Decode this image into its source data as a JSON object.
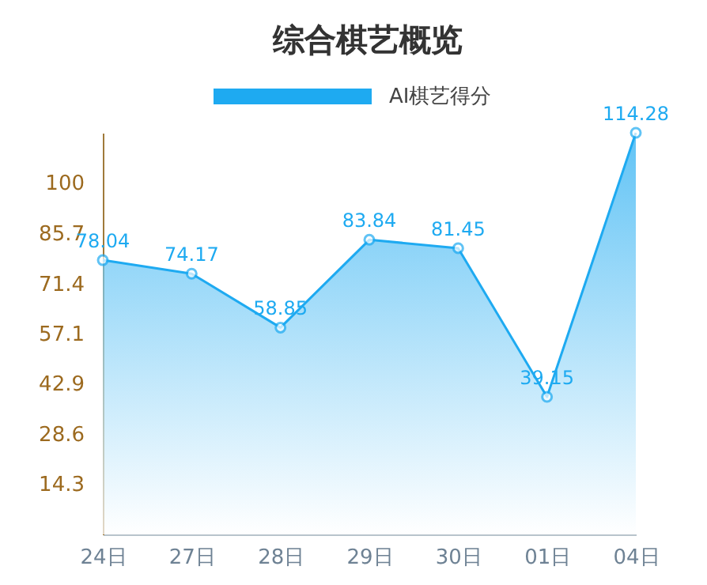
{
  "chart_data": {
    "type": "area",
    "title": "综合棋艺概览",
    "categories": [
      "24日",
      "27日",
      "28日",
      "29日",
      "30日",
      "01日",
      "04日"
    ],
    "series": [
      {
        "name": "AI棋艺得分",
        "color": "#1eaaf1",
        "values": [
          78.04,
          74.17,
          58.85,
          83.84,
          81.45,
          39.15,
          114.28
        ]
      }
    ],
    "ylim": [
      0,
      114.28
    ],
    "yticks": [
      14.3,
      28.6,
      42.9,
      57.1,
      71.4,
      85.7,
      100
    ],
    "data_labels": true,
    "marker": "circle",
    "legend": "top",
    "grid": false
  }
}
